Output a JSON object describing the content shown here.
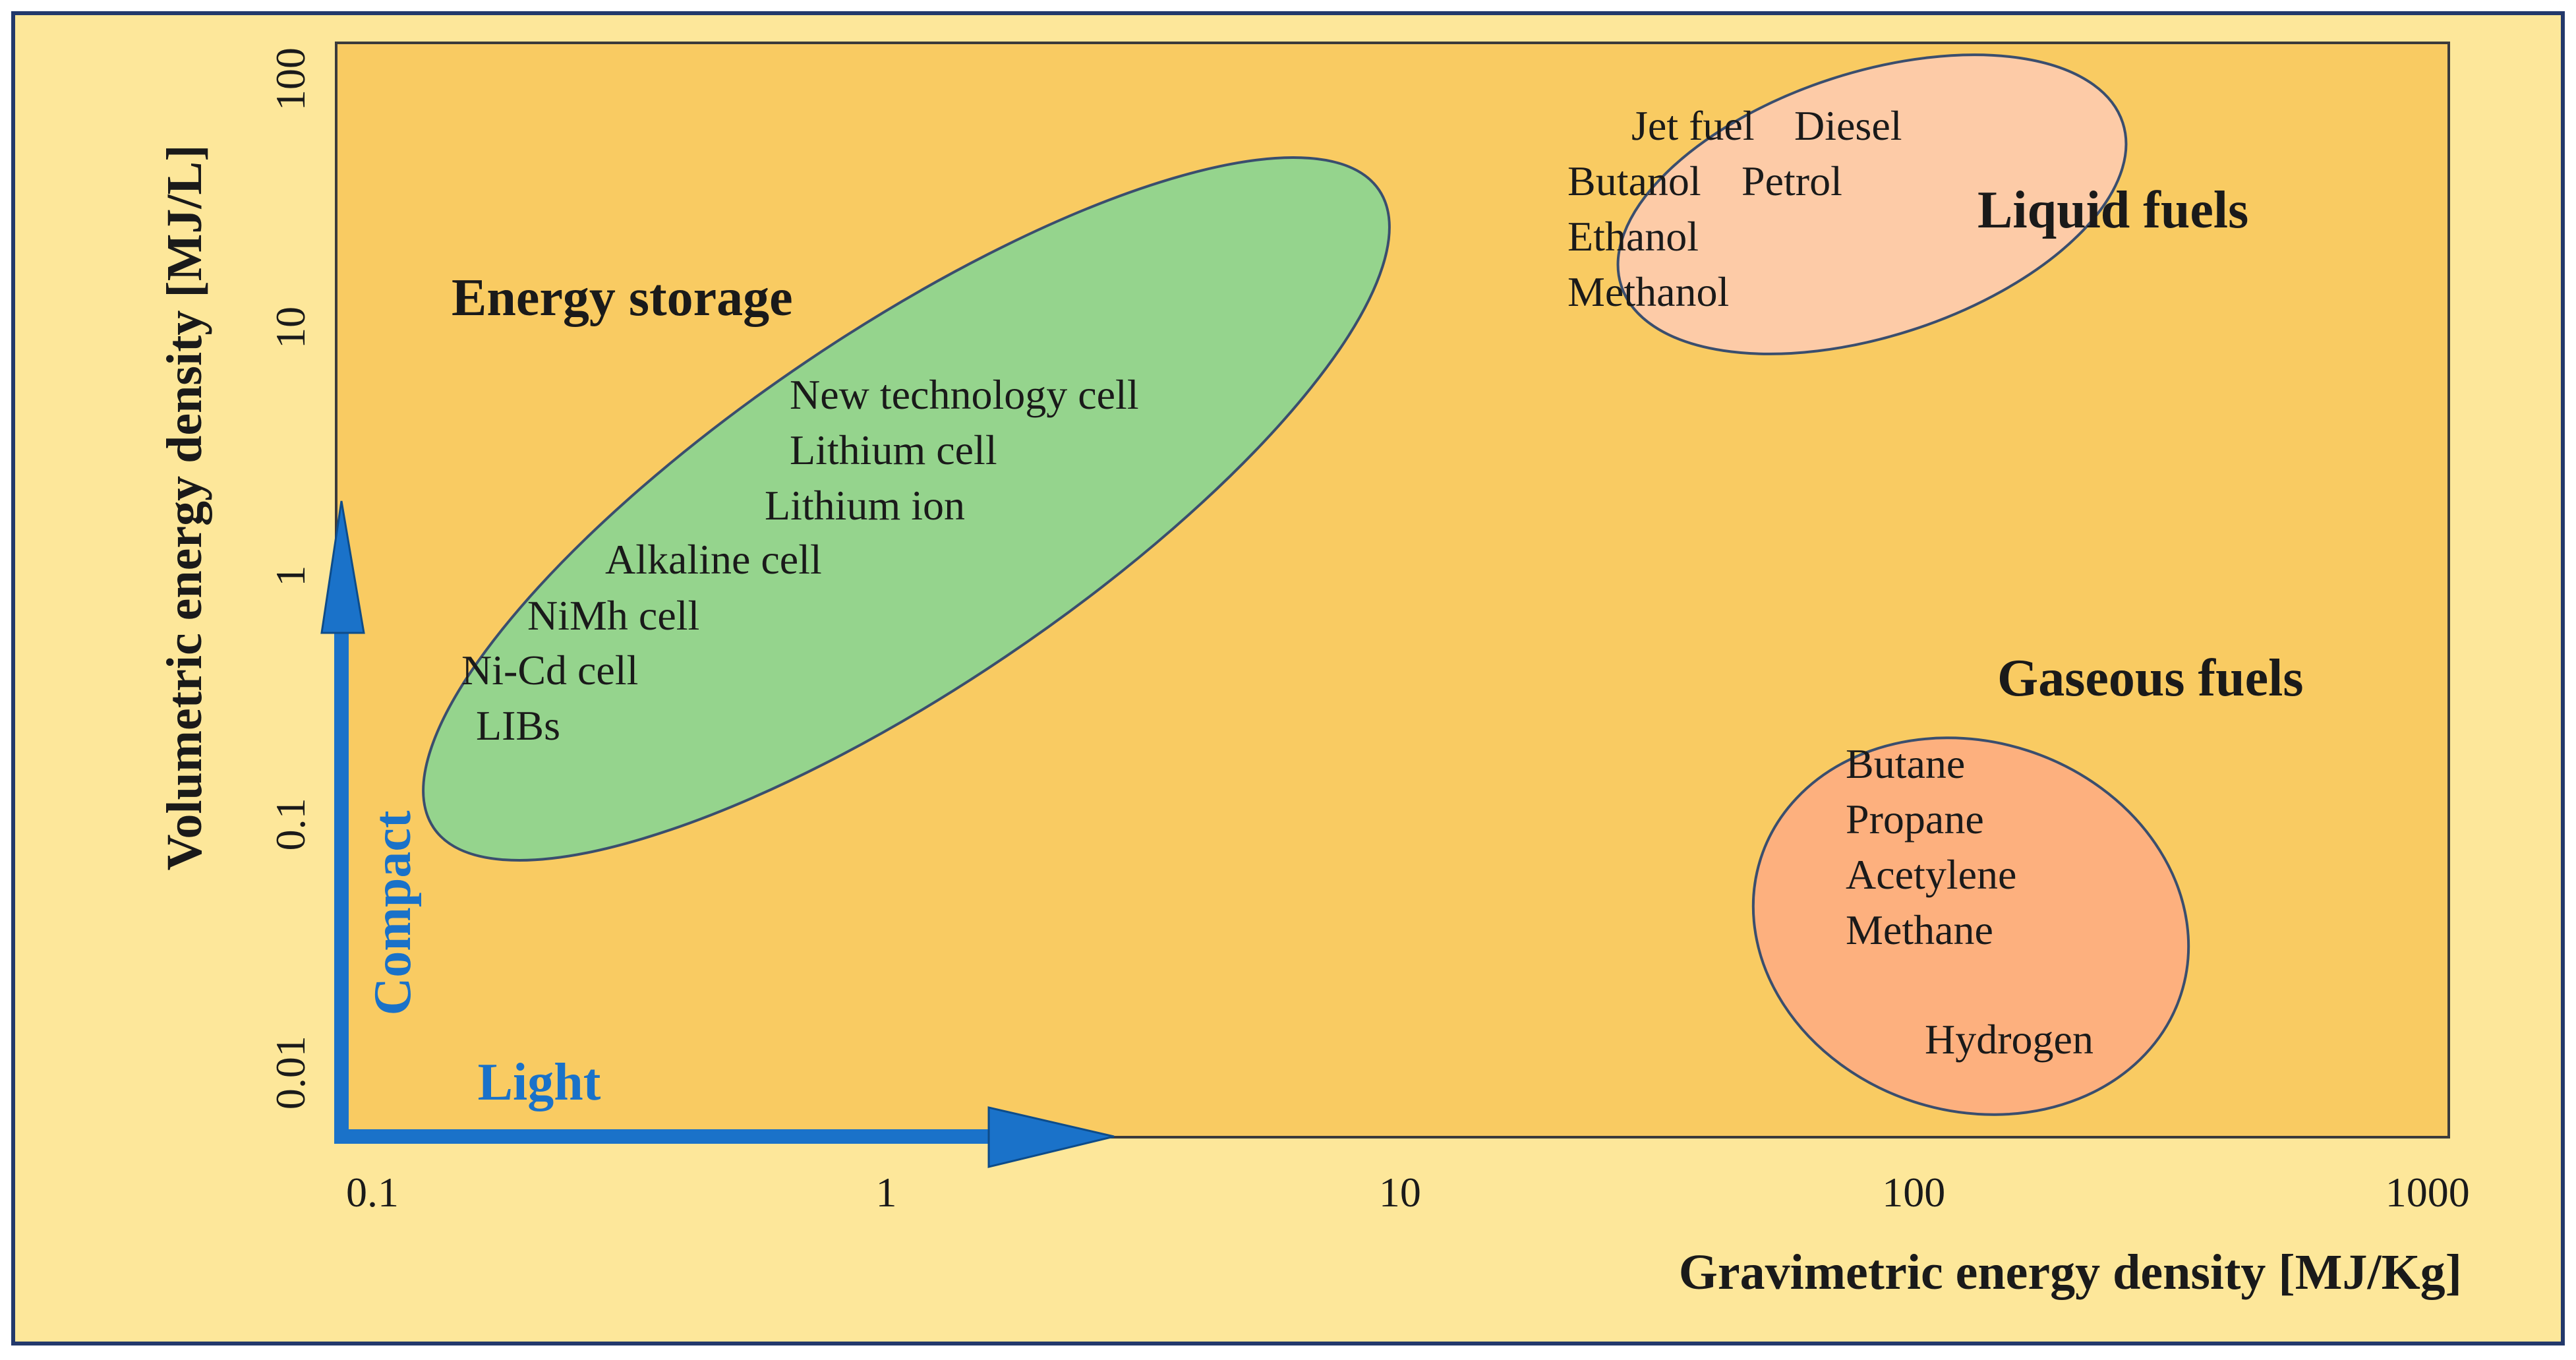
{
  "chart_data": {
    "type": "scatter",
    "title": "",
    "xlabel": "Gravimetric energy density [MJ/Kg]",
    "ylabel": "Volumetric energy density [MJ/L]",
    "x_scale": "log",
    "y_scale": "log",
    "xlim": [
      0.085,
      1100
    ],
    "ylim": [
      0.0055,
      140
    ],
    "x_ticks": [
      {
        "value": 0.1,
        "label": "0.1"
      },
      {
        "value": 1,
        "label": "1"
      },
      {
        "value": 10,
        "label": "10"
      },
      {
        "value": 100,
        "label": "100"
      },
      {
        "value": 1000,
        "label": "1000"
      }
    ],
    "y_ticks": [
      {
        "value": 0.01,
        "label": "0.01"
      },
      {
        "value": 0.1,
        "label": "0.1"
      },
      {
        "value": 1,
        "label": "1"
      },
      {
        "value": 10,
        "label": "10"
      },
      {
        "value": 100,
        "label": "100"
      }
    ],
    "grid": false,
    "colors": {
      "frame_background": "#FDE79A",
      "plot_background": "#F9CB62",
      "energy_storage_fill": "#95D48D",
      "liquid_fuels_fill": "#FDCBA7",
      "gaseous_fuels_fill": "#FDB07E",
      "ellipse_stroke": "#3A4E6E",
      "arrow_color": "#1A72C9",
      "text_color": "#1A1A1A"
    },
    "groups": [
      {
        "name": "Energy storage",
        "color": "#95D48D",
        "region": {
          "x_range": [
            0.11,
            8.5
          ],
          "y_range": [
            0.25,
            25
          ]
        },
        "items": [
          {
            "label": "New technology cell",
            "x": 1.3,
            "y": 4.5
          },
          {
            "label": "Lithium cell",
            "x": 1.2,
            "y": 2.6
          },
          {
            "label": "Lithium ion",
            "x": 1.1,
            "y": 1.6
          },
          {
            "label": "Alkaline cell",
            "x": 0.55,
            "y": 0.95
          },
          {
            "label": "NiMh cell",
            "x": 0.35,
            "y": 0.6
          },
          {
            "label": "Ni-Cd cell",
            "x": 0.2,
            "y": 0.38
          },
          {
            "label": "LIBs",
            "x": 0.2,
            "y": 0.24
          }
        ]
      },
      {
        "name": "Liquid fuels",
        "color": "#FDCBA7",
        "region": {
          "x_range": [
            25,
            150
          ],
          "y_range": [
            10,
            100
          ]
        },
        "items": [
          {
            "label": "Jet fuel",
            "x": 45,
            "y": 55
          },
          {
            "label": "Diesel",
            "x": 100,
            "y": 55
          },
          {
            "label": "Butanol",
            "x": 36,
            "y": 30
          },
          {
            "label": "Petrol",
            "x": 85,
            "y": 30
          },
          {
            "label": "Ethanol",
            "x": 36,
            "y": 18
          },
          {
            "label": "Methanol",
            "x": 36,
            "y": 10
          }
        ]
      },
      {
        "name": "Gaseous fuels",
        "color": "#FDB07E",
        "region": {
          "x_range": [
            90,
            320
          ],
          "y_range": [
            0.006,
            0.25
          ]
        },
        "items": [
          {
            "label": "Butane",
            "x": 140,
            "y": 0.15
          },
          {
            "label": "Propane",
            "x": 140,
            "y": 0.08
          },
          {
            "label": "Acetylene",
            "x": 140,
            "y": 0.045
          },
          {
            "label": "Methane",
            "x": 140,
            "y": 0.025
          },
          {
            "label": "Hydrogen",
            "x": 200,
            "y": 0.008
          }
        ]
      }
    ],
    "direction_arrows": [
      {
        "label": "Compact",
        "axis": "y"
      },
      {
        "label": "Light",
        "axis": "x"
      }
    ]
  }
}
